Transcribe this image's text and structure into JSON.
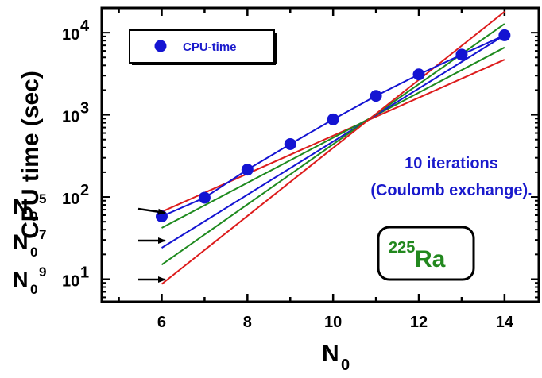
{
  "chart_data": {
    "type": "scatter",
    "ylabel": "CPU time (sec)",
    "xlabel": {
      "base": "N",
      "sub": "0"
    },
    "x_ticks": [
      6,
      8,
      10,
      12,
      14
    ],
    "y_ticks": [
      {
        "value": 10,
        "base": "10",
        "exp": "1"
      },
      {
        "value": 100,
        "base": "10",
        "exp": "2"
      },
      {
        "value": 1000,
        "base": "10",
        "exp": "3"
      },
      {
        "value": 10000,
        "base": "10",
        "exp": "4"
      }
    ],
    "xlim": [
      4.6,
      14.8
    ],
    "ylim": [
      5.3,
      20000
    ],
    "y_scale": "log",
    "series": [
      {
        "name": "CPU-time",
        "color": "#1414d2",
        "x": [
          6,
          7,
          8,
          9,
          10,
          11,
          12,
          13,
          14
        ],
        "y": [
          58,
          98,
          215,
          440,
          880,
          1700,
          3100,
          5400,
          9300
        ]
      }
    ],
    "reference_lines": [
      {
        "power": 5,
        "color": "#dd1c1c",
        "x": [
          6,
          14
        ],
        "y": [
          66,
          4700
        ]
      },
      {
        "power": 6,
        "color": "#1e8a1e",
        "x": [
          6,
          14
        ],
        "y": [
          42,
          6600
        ]
      },
      {
        "power": 7,
        "color": "#1414d2",
        "x": [
          6,
          14
        ],
        "y": [
          24,
          9300
        ]
      },
      {
        "power": 8,
        "color": "#1e8a1e",
        "x": [
          6,
          14
        ],
        "y": [
          15,
          12800
        ]
      },
      {
        "power": 9,
        "color": "#dd1c1c",
        "x": [
          6,
          14
        ],
        "y": [
          8.7,
          18000
        ]
      }
    ],
    "power_labels": [
      {
        "base": "N",
        "sub": "0",
        "exp": "5"
      },
      {
        "base": "N",
        "sub": "0",
        "exp": "7"
      },
      {
        "base": "N",
        "sub": "0",
        "exp": "9"
      }
    ],
    "annotation": {
      "line1": "10 iterations",
      "line2": "(Coulomb exchange)."
    },
    "nucleus": {
      "mass": "225",
      "symbol": "Ra"
    },
    "legend": {
      "label": "CPU-time",
      "placement": "top-left"
    }
  }
}
